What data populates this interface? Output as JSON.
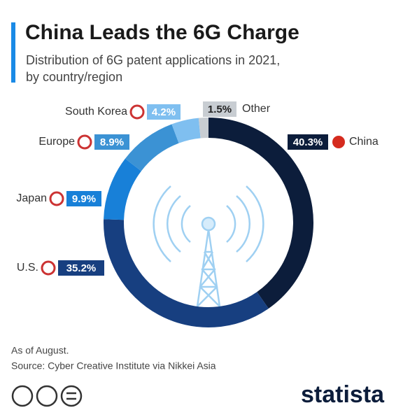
{
  "chart_data": {
    "type": "donut",
    "title": "China Leads the 6G Charge",
    "subtitle": [
      "Distribution of 6G patent applications in 2021,",
      "by country/region"
    ],
    "categories": [
      "China",
      "U.S.",
      "Japan",
      "Europe",
      "South Korea",
      "Other"
    ],
    "values": [
      40.3,
      35.2,
      9.9,
      8.9,
      4.2,
      1.5
    ],
    "value_labels": [
      "40.3%",
      "35.2%",
      "9.9%",
      "8.9%",
      "4.2%",
      "1.5%"
    ],
    "colors": [
      "#0c1d3b",
      "#173f80",
      "#1880d8",
      "#3b92d4",
      "#7fbff0",
      "#c8cdd2"
    ],
    "notes": [
      "As of August.",
      "Source: Cyber Creative Institute via Nikkei Asia"
    ],
    "logo": "statista"
  }
}
